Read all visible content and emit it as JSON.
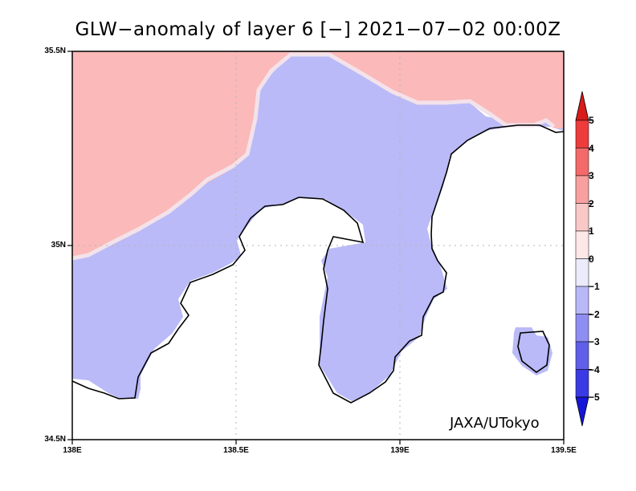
{
  "title": "GLW−anomaly of layer 6 [−] 2021−07−02 00:00Z",
  "credit": "JAXA/UTokyo",
  "y_ticks": [
    "35.5N",
    "35N",
    "34.5N"
  ],
  "x_ticks": [
    "138E",
    "138.5E",
    "139E",
    "139.5E"
  ],
  "colorbar": {
    "labels": [
      "5",
      "4",
      "3",
      "2",
      "1",
      "0",
      "−1",
      "−2",
      "−3",
      "−4",
      "−5"
    ],
    "colors": [
      "#d81b1b",
      "#ee3b3b",
      "#f46a6a",
      "#f8a0a0",
      "#fbc8c8",
      "#fde8e8",
      "#ebebfb",
      "#b8b8f8",
      "#8e8ef2",
      "#5f5fea",
      "#3a3ae4",
      "#1616d8"
    ]
  },
  "fill_colors": {
    "land_positive": "#fbb9b9",
    "land_negative": "#babaf8",
    "sea": "#ffffff"
  }
}
